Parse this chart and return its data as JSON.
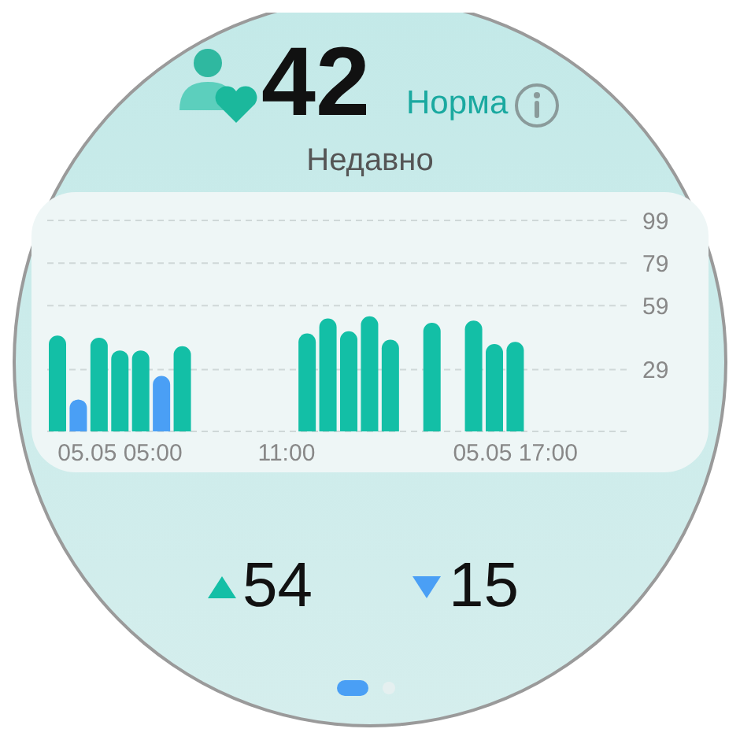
{
  "chart_data": {
    "type": "bar",
    "title": "42",
    "subtitle": "Недавно",
    "annotations": [
      "Норма",
      "54",
      "15"
    ],
    "categories": [
      null,
      null,
      null,
      "05.05 05:00",
      null,
      null,
      null,
      null,
      null,
      null,
      null,
      "11:00",
      null,
      null,
      null,
      null,
      null,
      null,
      null,
      null,
      null,
      null,
      "05.05 17:00",
      null,
      null,
      null,
      null,
      null
    ],
    "values": [
      45,
      15,
      44,
      38,
      38,
      26,
      40,
      null,
      null,
      null,
      null,
      null,
      46,
      53,
      47,
      54,
      43,
      null,
      51,
      null,
      52,
      41,
      42,
      null,
      null,
      null,
      null,
      null
    ],
    "colors": [
      "#13bfa6",
      "#4a9ff5",
      "#13bfa6",
      "#13bfa6",
      "#13bfa6",
      "#4a9ff5",
      "#13bfa6",
      "#13bfa6",
      "#13bfa6",
      "#13bfa6",
      "#13bfa6",
      "#13bfa6",
      "#13bfa6",
      "#13bfa6",
      "#13bfa6",
      "#13bfa6",
      "#13bfa6",
      "#13bfa6",
      "#13bfa6",
      "#13bfa6",
      "#13bfa6",
      "#13bfa6",
      "#13bfa6",
      "#13bfa6",
      "#13bfa6",
      "#13bfa6",
      "#13bfa6",
      "#13bfa6"
    ],
    "ylim": [
      0,
      99
    ],
    "yticks": [
      29,
      59,
      79,
      99
    ],
    "grid": "y",
    "legend": false
  }
}
